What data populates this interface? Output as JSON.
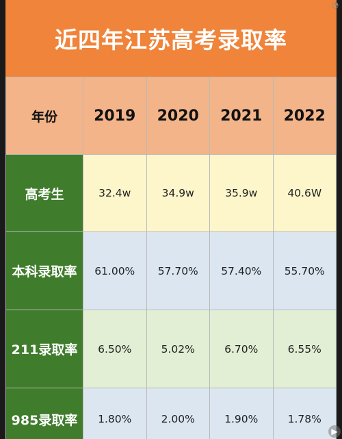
{
  "chart_data": {
    "type": "table",
    "title": "近四年江苏高考录取率",
    "corner_label": "年份",
    "columns": [
      "2019",
      "2020",
      "2021",
      "2022"
    ],
    "rows": [
      {
        "label": "高考生",
        "values": [
          "32.4w",
          "34.9w",
          "35.9w",
          "40.6W"
        ]
      },
      {
        "label": "本科录取率",
        "values": [
          "61.00%",
          "57.70%",
          "57.40%",
          "55.70%"
        ]
      },
      {
        "label": "211录取率",
        "values": [
          "6.50%",
          "5.02%",
          "6.70%",
          "6.55%"
        ]
      },
      {
        "label": "985录取率",
        "values": [
          "1.80%",
          "2.00%",
          "1.90%",
          "1.78%"
        ]
      }
    ]
  },
  "colors": {
    "title_bg": "#f0843a",
    "header_bg": "#f3b48a",
    "row_label_bg": "#3f7d2c",
    "row1_bg": "#fdf6cb",
    "row2_bg": "#dbe6f1",
    "row3_bg": "#e2efd5",
    "row4_bg": "#dbe6f1"
  },
  "icons": {
    "top_right": "corner-overlay-icon",
    "bottom_right": "play-overlay-icon"
  }
}
